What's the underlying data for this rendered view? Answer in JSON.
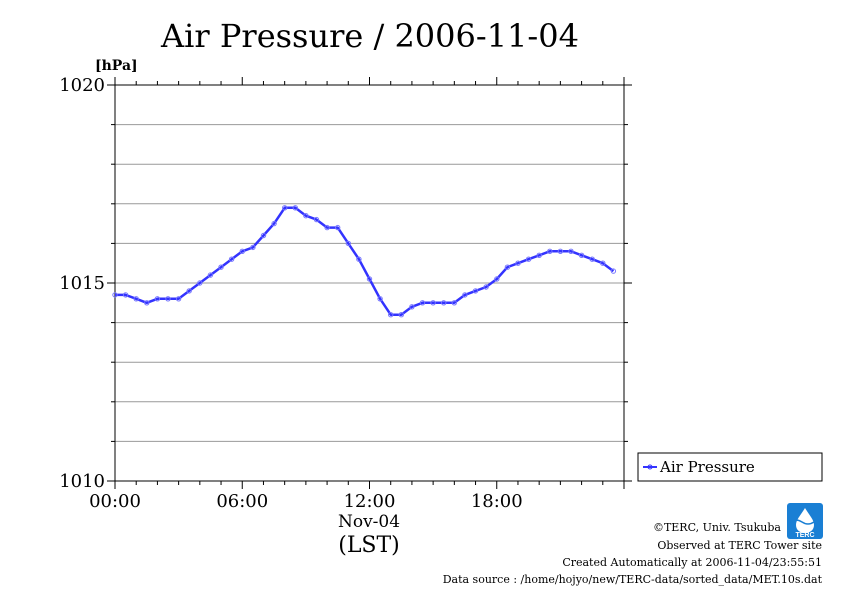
{
  "chart_data": {
    "type": "line",
    "title": "Air Pressure / 2006-11-04",
    "ylabel": "[hPa]",
    "xlabel_date": "Nov-04",
    "xlabel_tz": "(LST)",
    "ylim": [
      1010,
      1020
    ],
    "xlim": [
      0,
      24
    ],
    "grid": true,
    "y_major_ticks": [
      1010,
      1015,
      1020
    ],
    "y_tick_labels": [
      "1010",
      "1015",
      "1020"
    ],
    "y_minor_step": 1,
    "x_tick_values": [
      0,
      6,
      12,
      18
    ],
    "x_tick_labels": [
      "00:00",
      "06:00",
      "12:00",
      "18:00"
    ],
    "legend_position": "right",
    "series": [
      {
        "name": "Air Pressure",
        "color": "#3333ff",
        "x": [
          0,
          0.5,
          1.0,
          1.5,
          2.0,
          2.5,
          3.0,
          3.5,
          4.0,
          4.5,
          5.0,
          5.5,
          6.0,
          6.5,
          7.0,
          7.5,
          8.0,
          8.5,
          9.0,
          9.5,
          10.0,
          10.5,
          11.0,
          11.5,
          12.0,
          12.5,
          13.0,
          13.5,
          14.0,
          14.5,
          15.0,
          15.5,
          16.0,
          16.5,
          17.0,
          17.5,
          18.0,
          18.5,
          19.0,
          19.5,
          20.0,
          20.5,
          21.0,
          21.5,
          22.0,
          22.5,
          23.0,
          23.5
        ],
        "y": [
          1014.7,
          1014.7,
          1014.6,
          1014.5,
          1014.6,
          1014.6,
          1014.6,
          1014.8,
          1015.0,
          1015.2,
          1015.4,
          1015.6,
          1015.8,
          1015.9,
          1016.2,
          1016.5,
          1016.9,
          1016.9,
          1016.7,
          1016.6,
          1016.4,
          1016.4,
          1016.0,
          1015.6,
          1015.1,
          1014.6,
          1014.2,
          1014.2,
          1014.4,
          1014.5,
          1014.5,
          1014.5,
          1014.5,
          1014.7,
          1014.8,
          1014.9,
          1015.1,
          1015.4,
          1015.5,
          1015.6,
          1015.7,
          1015.8,
          1015.8,
          1015.8,
          1015.7,
          1015.6,
          1015.5,
          1015.3
        ]
      }
    ]
  },
  "legend": {
    "label": "Air Pressure"
  },
  "footer": {
    "copyright": "©TERC, Univ. Tsukuba",
    "site": "Observed at TERC Tower site",
    "created": "Created Automatically at 2006-11-04/23:55:51",
    "source": "Data source : /home/hojyo/new/TERC-data/sorted_data/MET.10s.dat",
    "logo_text": "TERC"
  }
}
